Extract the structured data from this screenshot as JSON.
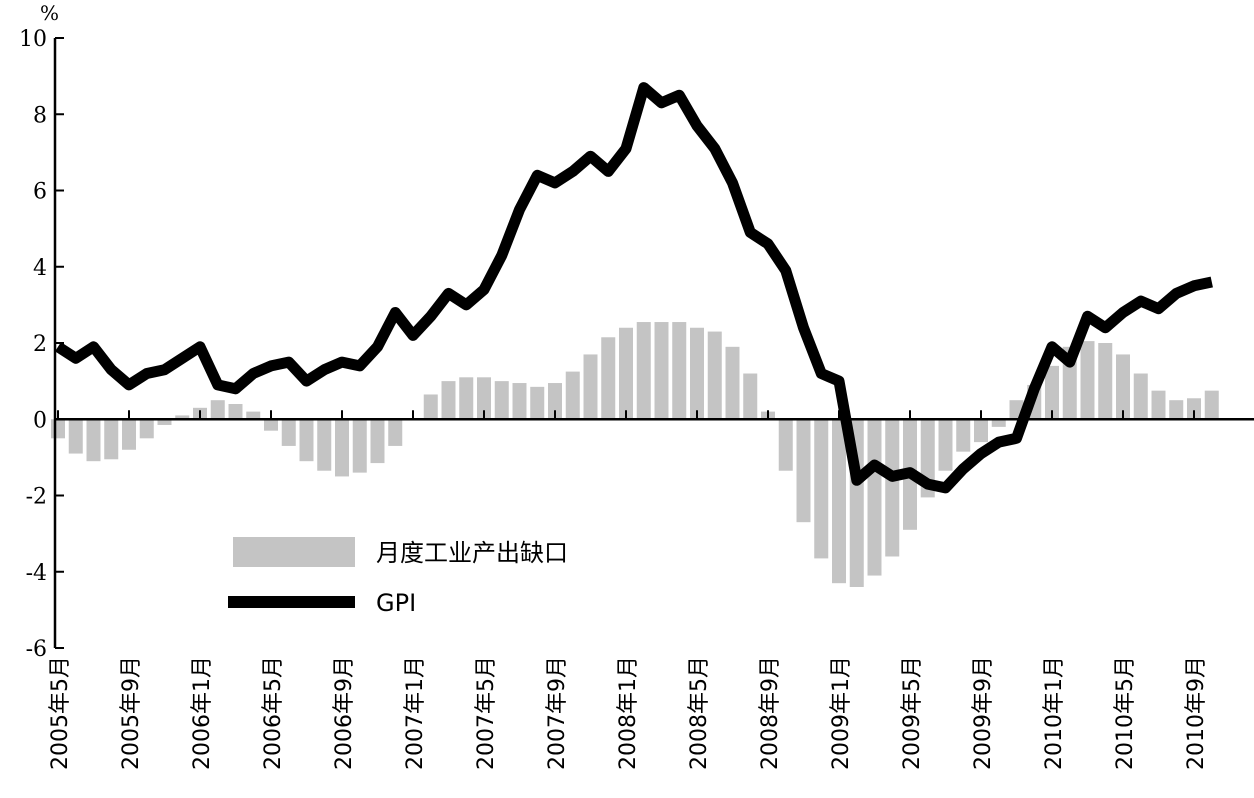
{
  "chart_data": {
    "type": "bar",
    "y_unit": "%",
    "ylim": [
      -6,
      10
    ],
    "y_ticks": [
      "10",
      "8",
      "6",
      "4",
      "2",
      "0",
      "-2",
      "-4",
      "-6"
    ],
    "x_tick_labels": [
      "2005年5月",
      "2005年9月",
      "2006年1月",
      "2006年5月",
      "2006年9月",
      "2007年1月",
      "2007年5月",
      "2007年9月",
      "2008年1月",
      "2008年5月",
      "2008年9月",
      "2009年1月",
      "2009年5月",
      "2009年9月",
      "2010年1月",
      "2010年5月",
      "2010年9月"
    ],
    "grid": false,
    "legend_position": "lower-left",
    "series": [
      {
        "name": "月度工业产出缺口",
        "type": "bar",
        "color": "#c4c4c4",
        "values": [
          -0.5,
          -0.9,
          -1.1,
          -1.05,
          -0.8,
          -0.5,
          -0.15,
          0.1,
          0.3,
          0.5,
          0.4,
          0.2,
          -0.3,
          -0.7,
          -1.1,
          -1.35,
          -1.5,
          -1.4,
          -1.15,
          -0.7,
          0,
          0.65,
          1.0,
          1.1,
          1.1,
          1.0,
          0.95,
          0.85,
          0.95,
          1.25,
          1.7,
          2.15,
          2.4,
          2.55,
          2.55,
          2.55,
          2.4,
          2.3,
          1.9,
          1.2,
          0.2,
          -1.35,
          -2.7,
          -3.65,
          -4.3,
          -4.4,
          -4.1,
          -3.6,
          -2.9,
          -2.05,
          -1.35,
          -0.85,
          -0.6,
          -0.2,
          0.5,
          0.9,
          1.4,
          1.9,
          2.05,
          2.0,
          1.7,
          1.2,
          0.75,
          0.5,
          0.55,
          0.75
        ]
      },
      {
        "name": "GPI",
        "type": "line",
        "color": "#000000",
        "values": [
          1.9,
          1.6,
          1.9,
          1.3,
          0.9,
          1.2,
          1.3,
          1.6,
          1.9,
          0.9,
          0.8,
          1.2,
          1.4,
          1.5,
          1.0,
          1.3,
          1.5,
          1.4,
          1.9,
          2.8,
          2.2,
          2.7,
          3.3,
          3.0,
          3.4,
          4.3,
          5.5,
          6.4,
          6.2,
          6.5,
          6.9,
          6.5,
          7.1,
          8.7,
          8.3,
          8.5,
          7.7,
          7.1,
          6.2,
          4.9,
          4.6,
          3.9,
          2.4,
          1.2,
          1.0,
          -1.6,
          -1.2,
          -1.5,
          -1.4,
          -1.7,
          -1.8,
          -1.3,
          -0.9,
          -0.6,
          -0.5,
          0.8,
          1.9,
          1.5,
          2.7,
          2.4,
          2.8,
          3.1,
          2.9,
          3.3,
          3.5,
          3.6
        ]
      }
    ]
  }
}
